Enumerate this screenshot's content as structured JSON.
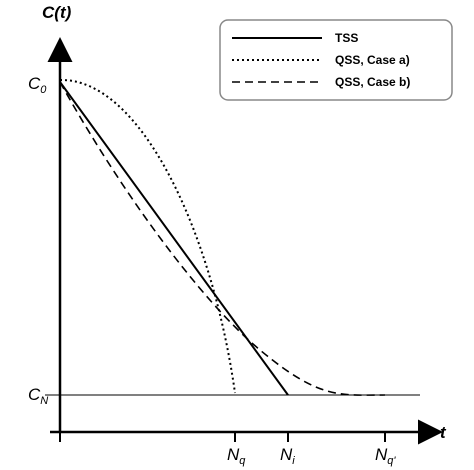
{
  "axes": {
    "y_label": "C(t)",
    "x_label": "t",
    "y_marks": [
      {
        "main": "C",
        "sub": "0"
      },
      {
        "main": "C",
        "sub": "N"
      }
    ],
    "x_marks": [
      {
        "main": "N",
        "sub": "q"
      },
      {
        "main": "N",
        "sub": "i"
      },
      {
        "main": "N",
        "sub": "q'"
      }
    ]
  },
  "legend": [
    "TSS",
    "QSS, Case a)",
    "QSS, Case b)"
  ]
}
